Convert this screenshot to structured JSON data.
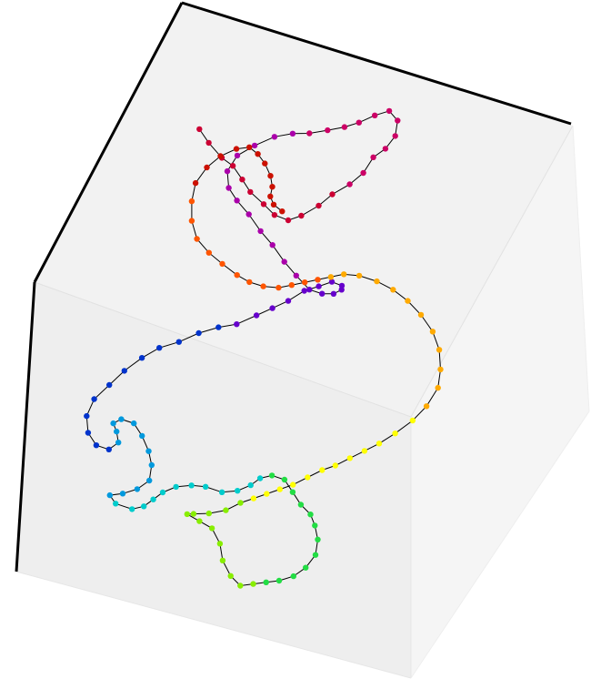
{
  "chart_data": {
    "type": "line",
    "projection": "3d",
    "title": "",
    "xlabel": "",
    "ylabel": "",
    "zlabel": "",
    "grid": false,
    "legend": "none",
    "markers": true,
    "line_color": "#000000",
    "marker_colormap": [
      "#cc0033",
      "#cc0066",
      "#aa00aa",
      "#6600cc",
      "#0033cc",
      "#0099dd",
      "#00cccc",
      "#22dd44",
      "#88ee00",
      "#ffff00",
      "#ffaa00",
      "#ff5500",
      "#cc1100"
    ],
    "pane_color": "#f2f2f2",
    "axis_line_color": "#000000",
    "series": [
      {
        "points": [
          [
            0.11,
            0.87,
            0.26
          ],
          [
            0.15,
            0.83,
            0.25
          ],
          [
            0.2,
            0.79,
            0.24
          ],
          [
            0.24,
            0.76,
            0.22
          ],
          [
            0.28,
            0.72,
            0.21
          ],
          [
            0.31,
            0.7,
            0.22
          ],
          [
            0.36,
            0.66,
            0.2
          ],
          [
            0.4,
            0.63,
            0.19
          ],
          [
            0.44,
            0.62,
            0.18
          ],
          [
            0.47,
            0.63,
            0.16
          ],
          [
            0.5,
            0.67,
            0.15
          ],
          [
            0.52,
            0.71,
            0.14
          ],
          [
            0.55,
            0.75,
            0.13
          ],
          [
            0.57,
            0.79,
            0.12
          ],
          [
            0.58,
            0.83,
            0.1
          ],
          [
            0.6,
            0.86,
            0.09
          ],
          [
            0.61,
            0.9,
            0.08
          ],
          [
            0.6,
            0.94,
            0.07
          ],
          [
            0.57,
            0.96,
            0.07
          ],
          [
            0.54,
            0.94,
            0.08
          ],
          [
            0.51,
            0.91,
            0.09
          ],
          [
            0.48,
            0.89,
            0.1
          ],
          [
            0.44,
            0.88,
            0.12
          ],
          [
            0.4,
            0.86,
            0.13
          ],
          [
            0.36,
            0.85,
            0.14
          ],
          [
            0.32,
            0.83,
            0.15
          ],
          [
            0.28,
            0.8,
            0.17
          ],
          [
            0.25,
            0.76,
            0.18
          ],
          [
            0.24,
            0.72,
            0.2
          ],
          [
            0.26,
            0.68,
            0.21
          ],
          [
            0.29,
            0.66,
            0.22
          ],
          [
            0.33,
            0.64,
            0.23
          ],
          [
            0.37,
            0.62,
            0.25
          ],
          [
            0.41,
            0.6,
            0.26
          ],
          [
            0.45,
            0.58,
            0.28
          ],
          [
            0.49,
            0.56,
            0.29
          ],
          [
            0.53,
            0.55,
            0.31
          ],
          [
            0.56,
            0.56,
            0.32
          ],
          [
            0.58,
            0.59,
            0.34
          ],
          [
            0.59,
            0.62,
            0.35
          ],
          [
            0.58,
            0.65,
            0.37
          ],
          [
            0.55,
            0.66,
            0.38
          ],
          [
            0.52,
            0.65,
            0.4
          ],
          [
            0.49,
            0.63,
            0.41
          ],
          [
            0.46,
            0.6,
            0.43
          ],
          [
            0.43,
            0.57,
            0.44
          ],
          [
            0.4,
            0.54,
            0.45
          ],
          [
            0.36,
            0.51,
            0.47
          ],
          [
            0.32,
            0.49,
            0.48
          ],
          [
            0.28,
            0.46,
            0.49
          ],
          [
            0.24,
            0.43,
            0.51
          ],
          [
            0.2,
            0.4,
            0.52
          ],
          [
            0.17,
            0.36,
            0.53
          ],
          [
            0.14,
            0.32,
            0.55
          ],
          [
            0.12,
            0.27,
            0.56
          ],
          [
            0.1,
            0.22,
            0.57
          ],
          [
            0.1,
            0.17,
            0.58
          ],
          [
            0.12,
            0.13,
            0.59
          ],
          [
            0.15,
            0.11,
            0.6
          ],
          [
            0.18,
            0.12,
            0.61
          ],
          [
            0.19,
            0.16,
            0.62
          ],
          [
            0.17,
            0.2,
            0.63
          ],
          [
            0.15,
            0.23,
            0.64
          ],
          [
            0.16,
            0.26,
            0.65
          ],
          [
            0.19,
            0.27,
            0.66
          ],
          [
            0.22,
            0.25,
            0.67
          ],
          [
            0.25,
            0.22,
            0.68
          ],
          [
            0.27,
            0.19,
            0.69
          ],
          [
            0.28,
            0.15,
            0.7
          ],
          [
            0.26,
            0.12,
            0.71
          ],
          [
            0.23,
            0.1,
            0.72
          ],
          [
            0.2,
            0.09,
            0.73
          ],
          [
            0.22,
            0.08,
            0.74
          ],
          [
            0.26,
            0.09,
            0.75
          ],
          [
            0.28,
            0.12,
            0.76
          ],
          [
            0.29,
            0.16,
            0.77
          ],
          [
            0.3,
            0.2,
            0.78
          ],
          [
            0.32,
            0.24,
            0.79
          ],
          [
            0.35,
            0.27,
            0.8
          ],
          [
            0.38,
            0.29,
            0.81
          ],
          [
            0.42,
            0.3,
            0.82
          ],
          [
            0.45,
            0.33,
            0.83
          ],
          [
            0.47,
            0.37,
            0.84
          ],
          [
            0.48,
            0.41,
            0.85
          ],
          [
            0.5,
            0.44,
            0.86
          ],
          [
            0.53,
            0.45,
            0.87
          ],
          [
            0.56,
            0.43,
            0.88
          ],
          [
            0.59,
            0.41,
            0.89
          ],
          [
            0.62,
            0.4,
            0.9
          ],
          [
            0.64,
            0.38,
            0.91
          ],
          [
            0.66,
            0.35,
            0.92
          ],
          [
            0.67,
            0.31,
            0.93
          ],
          [
            0.66,
            0.27,
            0.94
          ],
          [
            0.64,
            0.24,
            0.95
          ],
          [
            0.61,
            0.22,
            0.96
          ],
          [
            0.58,
            0.21,
            0.97
          ],
          [
            0.55,
            0.2,
            0.98
          ],
          [
            0.52,
            0.19,
            0.99
          ],
          [
            0.49,
            0.2,
            0.98
          ],
          [
            0.46,
            0.22,
            0.96
          ],
          [
            0.44,
            0.25,
            0.94
          ],
          [
            0.41,
            0.27,
            0.92
          ],
          [
            0.38,
            0.26,
            0.9
          ],
          [
            0.35,
            0.25,
            0.88
          ],
          [
            0.37,
            0.24,
            0.86
          ],
          [
            0.41,
            0.24,
            0.84
          ],
          [
            0.45,
            0.25,
            0.82
          ],
          [
            0.48,
            0.27,
            0.8
          ],
          [
            0.51,
            0.28,
            0.78
          ],
          [
            0.54,
            0.29,
            0.76
          ],
          [
            0.57,
            0.3,
            0.74
          ],
          [
            0.6,
            0.31,
            0.72
          ],
          [
            0.63,
            0.33,
            0.7
          ],
          [
            0.66,
            0.35,
            0.68
          ],
          [
            0.69,
            0.36,
            0.66
          ],
          [
            0.72,
            0.38,
            0.64
          ],
          [
            0.75,
            0.4,
            0.62
          ],
          [
            0.78,
            0.42,
            0.6
          ],
          [
            0.81,
            0.45,
            0.58
          ],
          [
            0.84,
            0.49,
            0.56
          ],
          [
            0.86,
            0.53,
            0.54
          ],
          [
            0.87,
            0.58,
            0.52
          ],
          [
            0.86,
            0.62,
            0.5
          ],
          [
            0.84,
            0.66,
            0.48
          ],
          [
            0.81,
            0.69,
            0.46
          ],
          [
            0.77,
            0.71,
            0.44
          ],
          [
            0.73,
            0.72,
            0.42
          ],
          [
            0.69,
            0.72,
            0.4
          ],
          [
            0.65,
            0.71,
            0.38
          ],
          [
            0.61,
            0.69,
            0.36
          ],
          [
            0.58,
            0.66,
            0.34
          ],
          [
            0.56,
            0.62,
            0.32
          ],
          [
            0.54,
            0.58,
            0.3
          ],
          [
            0.52,
            0.54,
            0.28
          ],
          [
            0.5,
            0.5,
            0.26
          ],
          [
            0.48,
            0.46,
            0.24
          ],
          [
            0.45,
            0.43,
            0.22
          ],
          [
            0.42,
            0.41,
            0.2
          ],
          [
            0.39,
            0.4,
            0.18
          ],
          [
            0.35,
            0.4,
            0.16
          ],
          [
            0.31,
            0.41,
            0.15
          ],
          [
            0.27,
            0.43,
            0.14
          ],
          [
            0.24,
            0.47,
            0.13
          ],
          [
            0.22,
            0.52,
            0.12
          ],
          [
            0.21,
            0.57,
            0.11
          ],
          [
            0.22,
            0.62,
            0.1
          ],
          [
            0.24,
            0.66,
            0.09
          ],
          [
            0.27,
            0.69,
            0.08
          ],
          [
            0.3,
            0.7,
            0.07
          ],
          [
            0.33,
            0.68,
            0.06
          ],
          [
            0.36,
            0.65,
            0.05
          ],
          [
            0.39,
            0.61,
            0.04
          ],
          [
            0.41,
            0.57,
            0.03
          ],
          [
            0.42,
            0.53,
            0.02
          ],
          [
            0.44,
            0.5,
            0.01
          ],
          [
            0.47,
            0.48,
            0.0
          ]
        ]
      }
    ]
  }
}
